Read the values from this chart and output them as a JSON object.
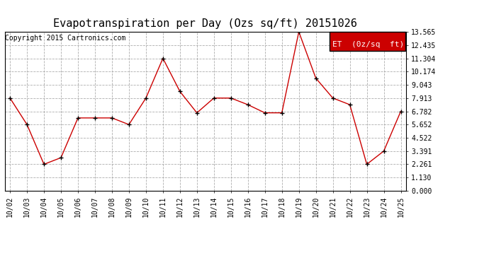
{
  "title": "Evapotranspiration per Day (Ozs sq/ft) 20151026",
  "copyright": "Copyright 2015 Cartronics.com",
  "legend_label": "ET  (0z/sq  ft)",
  "x_labels": [
    "10/02",
    "10/03",
    "10/04",
    "10/05",
    "10/06",
    "10/07",
    "10/08",
    "10/09",
    "10/10",
    "10/11",
    "10/12",
    "10/13",
    "10/14",
    "10/15",
    "10/16",
    "10/17",
    "10/18",
    "10/19",
    "10/20",
    "10/21",
    "10/22",
    "10/23",
    "10/24",
    "10/25"
  ],
  "y_values": [
    7.913,
    5.652,
    2.261,
    2.826,
    6.217,
    6.217,
    6.217,
    5.652,
    7.913,
    11.304,
    8.478,
    6.652,
    7.913,
    7.913,
    7.348,
    6.652,
    6.652,
    13.565,
    9.609,
    7.913,
    7.348,
    2.261,
    3.391,
    6.782
  ],
  "y_ticks": [
    0.0,
    1.13,
    2.261,
    3.391,
    4.522,
    5.652,
    6.782,
    7.913,
    9.043,
    10.174,
    11.304,
    12.435,
    13.565
  ],
  "ylim": [
    0.0,
    13.565
  ],
  "line_color": "#cc0000",
  "marker_color": "#000000",
  "background_color": "#ffffff",
  "grid_color": "#999999",
  "title_fontsize": 11,
  "copyright_fontsize": 7,
  "legend_bg": "#cc0000",
  "legend_text_color": "#ffffff",
  "tick_fontsize": 7
}
